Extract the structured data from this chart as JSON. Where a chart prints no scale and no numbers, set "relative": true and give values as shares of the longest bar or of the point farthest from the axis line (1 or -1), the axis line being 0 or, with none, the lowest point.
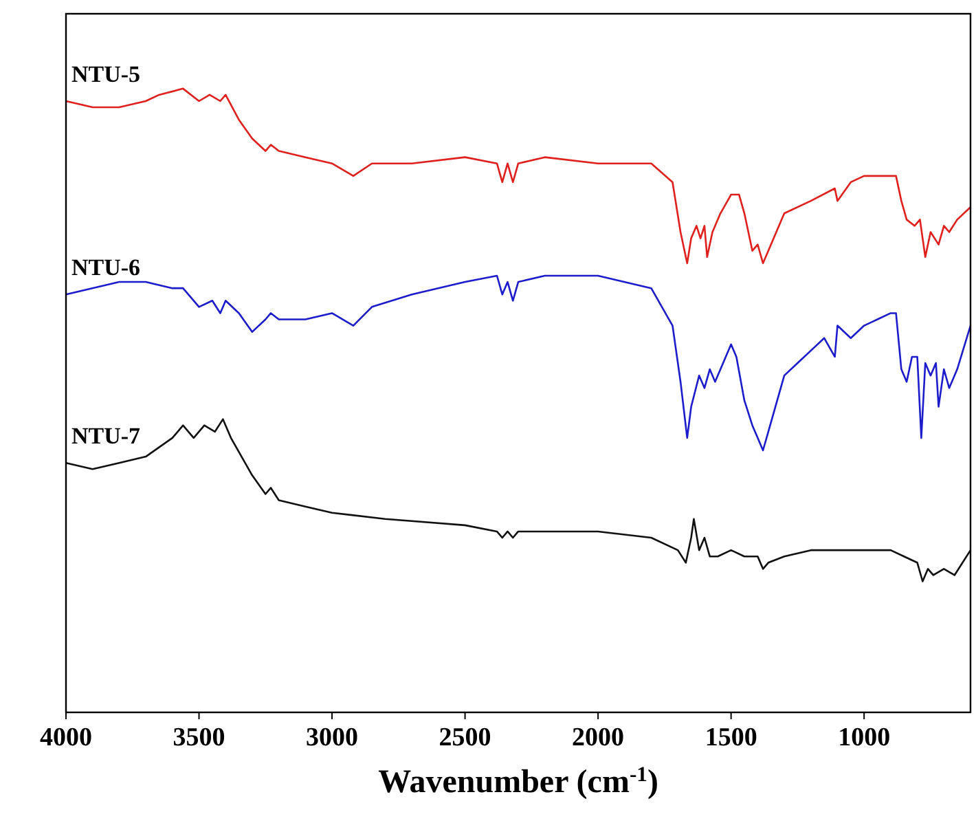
{
  "chart_data": {
    "type": "line",
    "relative": true,
    "xlabel": "Wavenumber (cm$^{-1}$)",
    "xlim": [
      4000,
      600
    ],
    "xticks": [
      4000,
      3500,
      3000,
      2500,
      2000,
      1500,
      1000
    ],
    "series": [
      {
        "name": "NTU-5",
        "color": "#e0201c",
        "x": [
          4000,
          3900,
          3800,
          3700,
          3650,
          3560,
          3500,
          3460,
          3420,
          3400,
          3350,
          3300,
          3250,
          3230,
          3200,
          3100,
          3000,
          2920,
          2850,
          2700,
          2500,
          2380,
          2360,
          2340,
          2320,
          2300,
          2200,
          2000,
          1800,
          1720,
          1690,
          1665,
          1650,
          1630,
          1615,
          1600,
          1590,
          1570,
          1540,
          1500,
          1470,
          1450,
          1420,
          1400,
          1380,
          1360,
          1300,
          1200,
          1110,
          1100,
          1050,
          1000,
          950,
          880,
          860,
          840,
          810,
          790,
          770,
          750,
          720,
          700,
          680,
          650,
          600
        ],
        "values": [
          0.98,
          0.97,
          0.97,
          0.98,
          0.99,
          1.0,
          0.98,
          0.99,
          0.98,
          0.99,
          0.95,
          0.92,
          0.9,
          0.91,
          0.9,
          0.89,
          0.88,
          0.86,
          0.88,
          0.88,
          0.89,
          0.88,
          0.85,
          0.88,
          0.85,
          0.88,
          0.89,
          0.88,
          0.88,
          0.85,
          0.77,
          0.72,
          0.76,
          0.78,
          0.76,
          0.78,
          0.73,
          0.77,
          0.8,
          0.83,
          0.83,
          0.8,
          0.74,
          0.75,
          0.72,
          0.74,
          0.8,
          0.82,
          0.84,
          0.82,
          0.85,
          0.86,
          0.86,
          0.86,
          0.82,
          0.79,
          0.78,
          0.79,
          0.73,
          0.77,
          0.75,
          0.78,
          0.77,
          0.79,
          0.81
        ]
      },
      {
        "name": "NTU-6",
        "color": "#1c1ccc",
        "x": [
          4000,
          3800,
          3700,
          3600,
          3560,
          3500,
          3450,
          3420,
          3400,
          3350,
          3300,
          3250,
          3230,
          3200,
          3100,
          3000,
          2920,
          2850,
          2700,
          2500,
          2380,
          2360,
          2340,
          2320,
          2300,
          2200,
          2000,
          1800,
          1720,
          1690,
          1665,
          1650,
          1620,
          1600,
          1580,
          1560,
          1530,
          1500,
          1480,
          1450,
          1420,
          1400,
          1380,
          1360,
          1300,
          1250,
          1200,
          1150,
          1110,
          1100,
          1050,
          1000,
          950,
          900,
          880,
          860,
          840,
          820,
          800,
          785,
          770,
          750,
          730,
          720,
          700,
          680,
          650,
          600
        ],
        "values": [
          0.67,
          0.69,
          0.69,
          0.68,
          0.68,
          0.65,
          0.66,
          0.64,
          0.66,
          0.64,
          0.61,
          0.63,
          0.64,
          0.63,
          0.63,
          0.64,
          0.62,
          0.65,
          0.67,
          0.69,
          0.7,
          0.67,
          0.69,
          0.66,
          0.69,
          0.7,
          0.7,
          0.68,
          0.62,
          0.53,
          0.44,
          0.49,
          0.54,
          0.52,
          0.55,
          0.53,
          0.56,
          0.59,
          0.57,
          0.5,
          0.46,
          0.44,
          0.42,
          0.45,
          0.54,
          0.56,
          0.58,
          0.6,
          0.57,
          0.62,
          0.6,
          0.62,
          0.63,
          0.64,
          0.64,
          0.55,
          0.53,
          0.57,
          0.57,
          0.44,
          0.56,
          0.54,
          0.56,
          0.49,
          0.55,
          0.52,
          0.55,
          0.62
        ]
      },
      {
        "name": "NTU-7",
        "color": "#111111",
        "x": [
          4000,
          3900,
          3800,
          3700,
          3600,
          3560,
          3520,
          3480,
          3440,
          3410,
          3380,
          3300,
          3250,
          3230,
          3200,
          3100,
          3000,
          2800,
          2500,
          2380,
          2360,
          2340,
          2320,
          2300,
          2000,
          1800,
          1700,
          1670,
          1650,
          1640,
          1620,
          1600,
          1580,
          1550,
          1500,
          1450,
          1400,
          1380,
          1360,
          1300,
          1200,
          1000,
          900,
          850,
          800,
          780,
          760,
          740,
          700,
          660,
          600
        ],
        "values": [
          0.4,
          0.39,
          0.4,
          0.41,
          0.44,
          0.46,
          0.44,
          0.46,
          0.45,
          0.47,
          0.44,
          0.38,
          0.35,
          0.36,
          0.34,
          0.33,
          0.32,
          0.31,
          0.3,
          0.29,
          0.28,
          0.29,
          0.28,
          0.29,
          0.29,
          0.28,
          0.26,
          0.24,
          0.28,
          0.31,
          0.26,
          0.28,
          0.25,
          0.25,
          0.26,
          0.25,
          0.25,
          0.23,
          0.24,
          0.25,
          0.26,
          0.26,
          0.26,
          0.25,
          0.24,
          0.21,
          0.23,
          0.22,
          0.23,
          0.22,
          0.26
        ]
      }
    ]
  }
}
